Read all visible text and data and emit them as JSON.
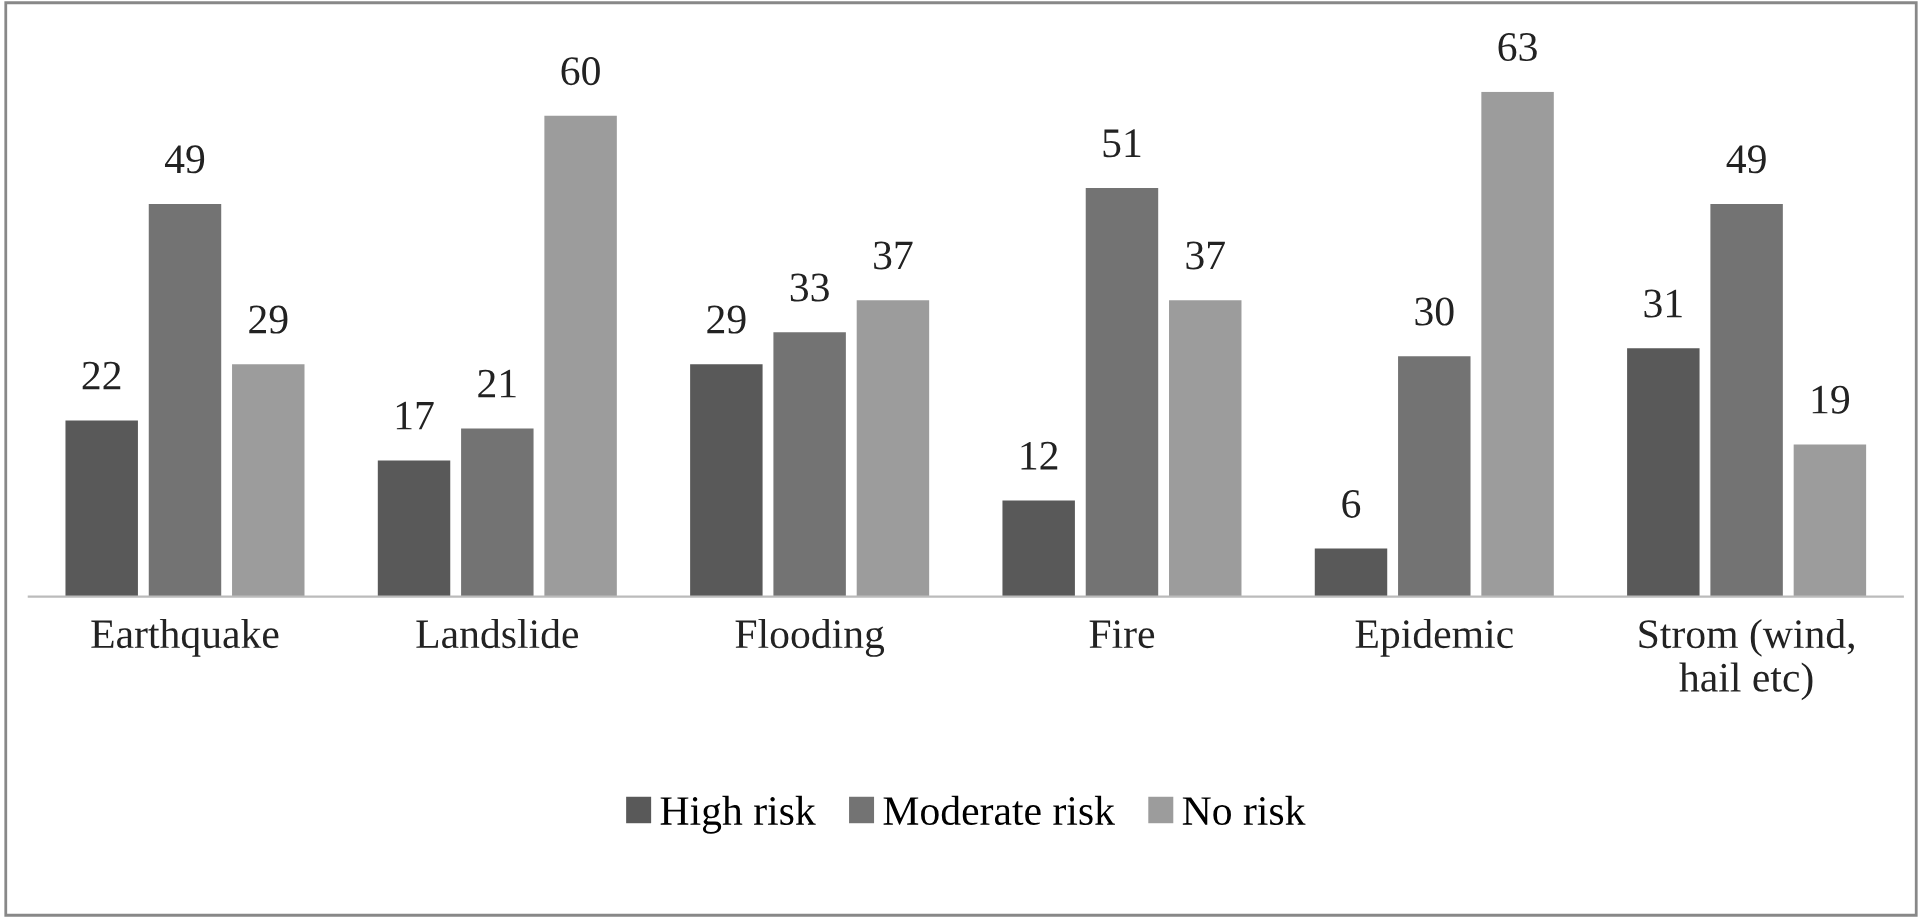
{
  "chart_data": {
    "type": "bar",
    "categories": [
      "Earthquake",
      "Landslide",
      "Flooding",
      "Fire",
      "Epidemic",
      "Strom (wind,\nhail etc)"
    ],
    "series": [
      {
        "name": "High risk",
        "color": "#595959",
        "values": [
          22,
          17,
          29,
          12,
          6,
          31
        ]
      },
      {
        "name": "Moderate risk",
        "color": "#737373",
        "values": [
          49,
          21,
          33,
          51,
          30,
          49
        ]
      },
      {
        "name": "No risk",
        "color": "#9c9c9c",
        "values": [
          29,
          60,
          37,
          37,
          63,
          19
        ]
      }
    ],
    "data_labels": true,
    "legend": "bottom",
    "grid": false
  }
}
